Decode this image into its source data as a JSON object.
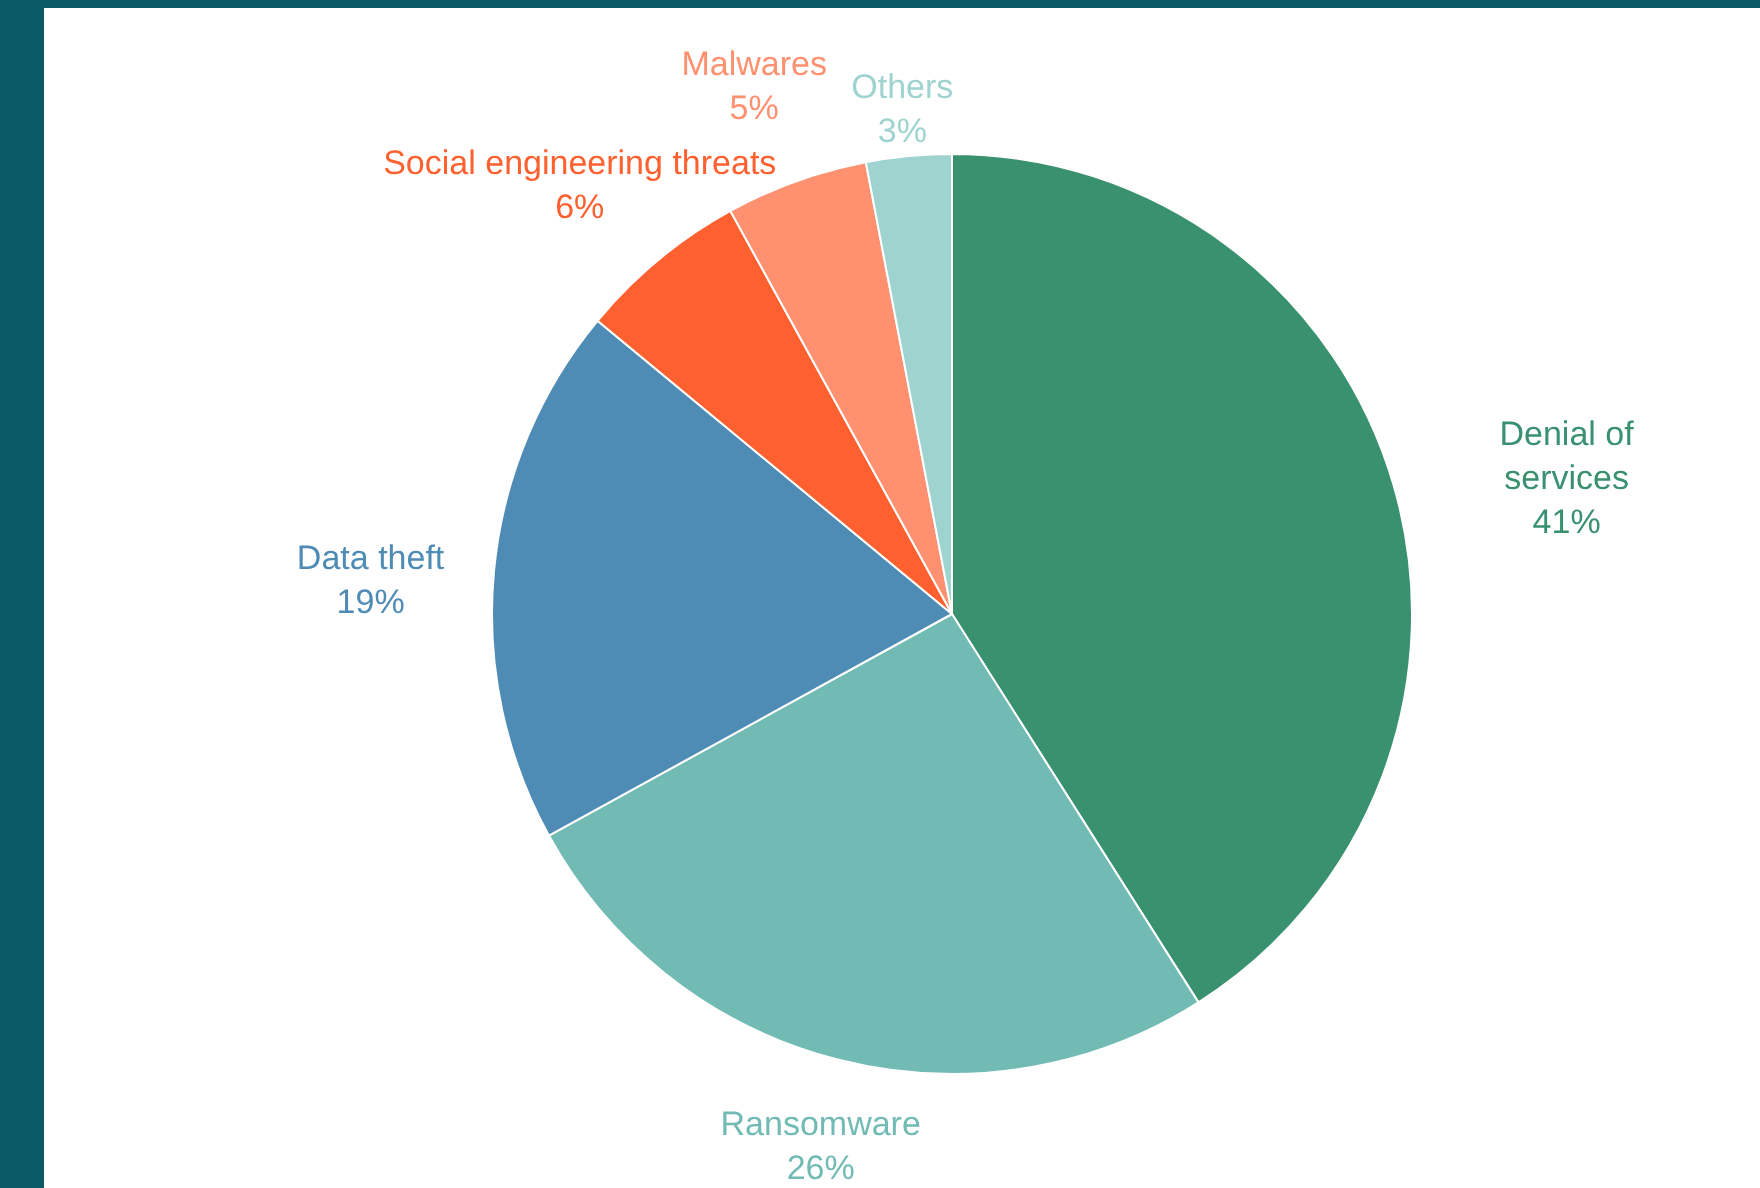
{
  "chart_data": {
    "type": "pie",
    "categories": [
      "Denial of services",
      "Ransomware",
      "Data theft",
      "Social engineering threats",
      "Malwares",
      "Others"
    ],
    "values": [
      41,
      26,
      19,
      6,
      5,
      3
    ],
    "value_labels": [
      "41%",
      "26%",
      "19%",
      "6%",
      "5%",
      "3%"
    ],
    "colors": [
      "#3a9170",
      "#72bbb5",
      "#4f8cb5",
      "#ff6030",
      "#ff9070",
      "#9fd3d0"
    ]
  }
}
